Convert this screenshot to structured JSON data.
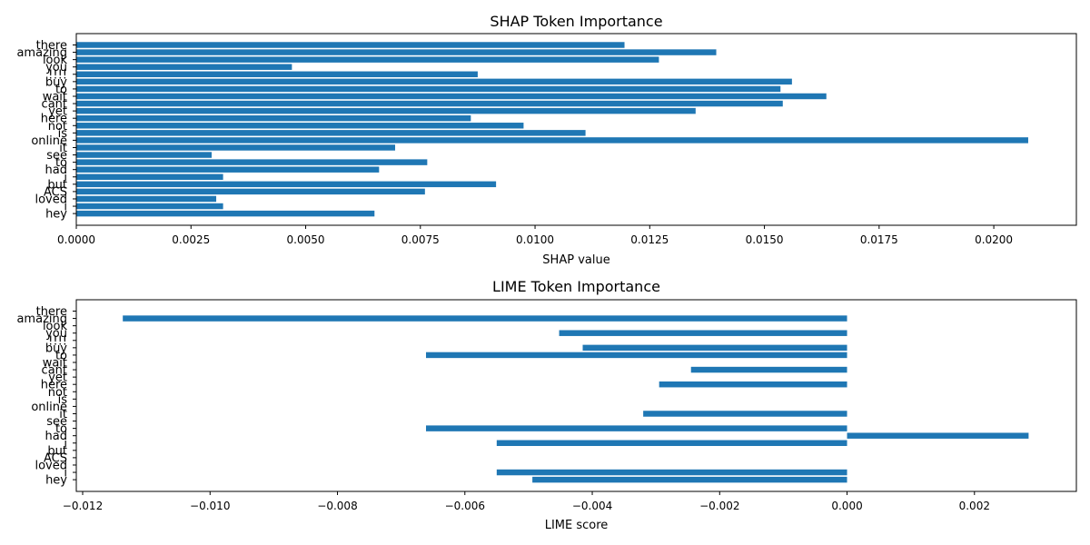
{
  "chart_data": [
    {
      "type": "bar",
      "orientation": "horizontal",
      "title": "SHAP Token Importance",
      "xlabel": "SHAP value",
      "ylabel": "",
      "xlim": [
        0.0,
        0.0218
      ],
      "xticks": [
        "0.0000",
        "0.0025",
        "0.0050",
        "0.0075",
        "0.0100",
        "0.0125",
        "0.0150",
        "0.0175",
        "0.0200"
      ],
      "xtick_values": [
        0,
        0.0025,
        0.005,
        0.0075,
        0.01,
        0.0125,
        0.015,
        0.0175,
        0.02
      ],
      "categories": [
        "there",
        "amazing",
        "look",
        "you",
        "!!!!",
        "buy",
        "to",
        "wait",
        "cant",
        "yet",
        "here",
        "not",
        "is",
        "online",
        "it",
        "see",
        "to",
        "had",
        "i",
        "but",
        "ACS",
        "loved",
        "i",
        "hey"
      ],
      "values": [
        0.01195,
        0.01395,
        0.0127,
        0.0047,
        0.00875,
        0.0156,
        0.01535,
        0.01635,
        0.0154,
        0.0135,
        0.0086,
        0.00975,
        0.0111,
        0.02075,
        0.00695,
        0.00295,
        0.00765,
        0.0066,
        0.0032,
        0.00915,
        0.0076,
        0.00305,
        0.0032,
        0.0065
      ],
      "color": "#1f77b4",
      "grid": false
    },
    {
      "type": "bar",
      "orientation": "horizontal",
      "title": "LIME Token Importance",
      "xlabel": "LIME score",
      "ylabel": "",
      "xlim": [
        -0.0121,
        0.0036
      ],
      "xticks": [
        "−0.012",
        "−0.010",
        "−0.008",
        "−0.006",
        "−0.004",
        "−0.002",
        "0.000",
        "0.002"
      ],
      "xtick_values": [
        -0.012,
        -0.01,
        -0.008,
        -0.006,
        -0.004,
        -0.002,
        0,
        0.002
      ],
      "categories": [
        "there",
        "amazing",
        "look",
        "you",
        "!!!!",
        "buy",
        "to",
        "wait",
        "cant",
        "yet",
        "here",
        "not",
        "is",
        "online",
        "it",
        "see",
        "to",
        "had",
        "i",
        "but",
        "ACS",
        "loved",
        "i",
        "hey"
      ],
      "values": [
        0,
        -0.01137,
        0,
        -0.00452,
        0,
        -0.00415,
        -0.00661,
        0,
        -0.00245,
        0,
        -0.00295,
        0,
        0,
        0,
        -0.0032,
        0,
        -0.00661,
        0.00285,
        -0.0055,
        0,
        0,
        0,
        -0.0055,
        -0.00494
      ],
      "color": "#1f77b4",
      "grid": false
    }
  ]
}
